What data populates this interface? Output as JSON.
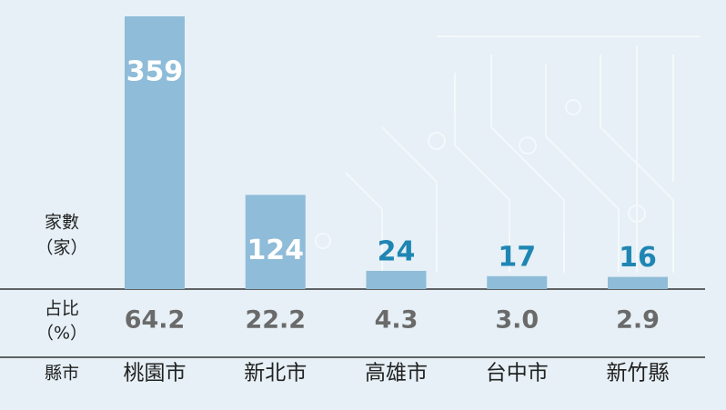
{
  "chart_data": {
    "type": "bar",
    "categories": [
      "桃園市",
      "新北市",
      "高雄市",
      "台中市",
      "新竹縣"
    ],
    "values": [
      359,
      124,
      24,
      17,
      16
    ],
    "color": "#8fbcd8",
    "value_label_color": "#1f86b3",
    "share_labels": [
      "64.2",
      "22.2",
      "4.3",
      "3.0",
      "2.9"
    ],
    "row_labels": {
      "count": "家數",
      "count_unit": "（家）",
      "share": "占比",
      "share_unit": "（%）",
      "city": "縣市"
    }
  }
}
